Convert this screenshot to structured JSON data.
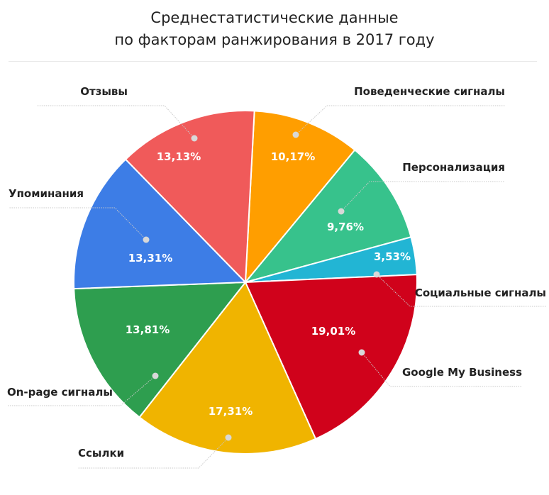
{
  "chart_data": {
    "type": "pie",
    "title_line1": "Среднестатистические данные",
    "title_line2": "по факторам ранжирования в 2017 году",
    "slices": [
      {
        "label": "Поведенческие сигналы",
        "value": 10.17,
        "display": "10,17%",
        "color": "#ff9e00"
      },
      {
        "label": "Персонализация",
        "value": 9.76,
        "display": "9,76%",
        "color": "#37c28c"
      },
      {
        "label": "Социальные сигналы",
        "value": 3.53,
        "display": "3,53%",
        "color": "#22b5d4"
      },
      {
        "label": "Google My Business",
        "value": 19.01,
        "display": "19,01%",
        "color": "#d0021b"
      },
      {
        "label": "Ссылки",
        "value": 17.31,
        "display": "17,31%",
        "color": "#f0b400"
      },
      {
        "label": "On-page сигналы",
        "value": 13.81,
        "display": "13,81%",
        "color": "#2e9e4f"
      },
      {
        "label": "Упоминания",
        "value": 13.31,
        "display": "13,31%",
        "color": "#3d7de6"
      },
      {
        "label": "Отзывы",
        "value": 13.13,
        "display": "13,13%",
        "color": "#f05a5a"
      }
    ]
  }
}
